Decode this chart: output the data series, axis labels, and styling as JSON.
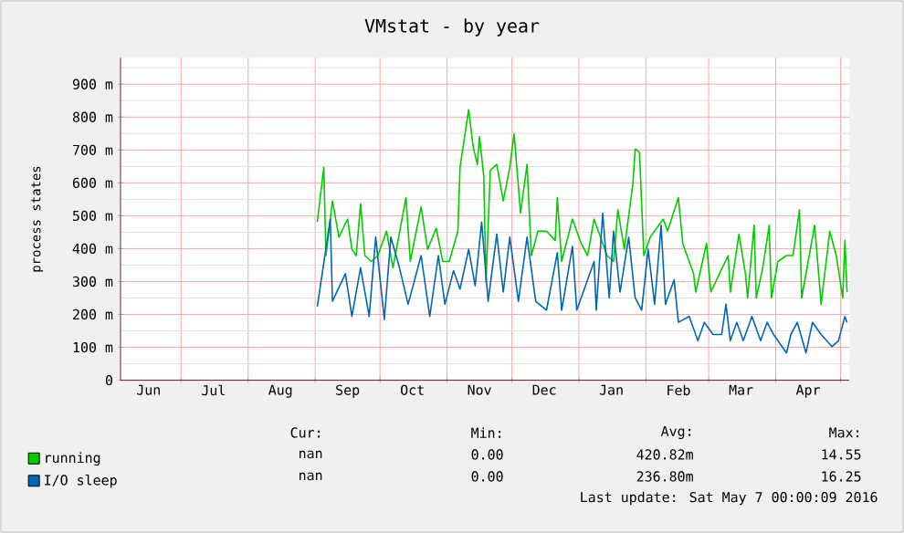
{
  "chart_data": {
    "type": "line",
    "title": "VMstat - by year",
    "ylabel": "process states",
    "xlim": [
      "2015-06-03",
      "2016-05-05"
    ],
    "xticks": [
      {
        "value": "2015-06-16",
        "label": "Jun"
      },
      {
        "value": "2015-07-16",
        "label": "Jul"
      },
      {
        "value": "2015-08-16",
        "label": "Aug"
      },
      {
        "value": "2015-09-16",
        "label": "Sep"
      },
      {
        "value": "2015-10-16",
        "label": "Oct"
      },
      {
        "value": "2015-11-16",
        "label": "Nov"
      },
      {
        "value": "2015-12-16",
        "label": "Dec"
      },
      {
        "value": "2016-01-16",
        "label": "Jan"
      },
      {
        "value": "2016-02-16",
        "label": "Feb"
      },
      {
        "value": "2016-03-16",
        "label": "Mar"
      },
      {
        "value": "2016-04-16",
        "label": "Apr"
      },
      {
        "value": "2015-07-01",
        "label": null
      },
      {
        "value": "2015-08-01",
        "label": null
      },
      {
        "value": "2015-09-01",
        "label": null
      },
      {
        "value": "2015-10-01",
        "label": null
      },
      {
        "value": "2015-11-01",
        "label": null
      },
      {
        "value": "2015-12-01",
        "label": null
      },
      {
        "value": "2016-01-01",
        "label": null
      },
      {
        "value": "2016-02-01",
        "label": null
      },
      {
        "value": "2016-03-01",
        "label": null
      },
      {
        "value": "2016-04-01",
        "label": null
      },
      {
        "value": "2016-05-01",
        "label": null
      }
    ],
    "ylim": [
      0,
      980
    ],
    "yticks": [
      0,
      {
        "value": 100,
        "label": "100 m"
      },
      {
        "value": 200,
        "label": "200 m"
      },
      {
        "value": 300,
        "label": "300 m"
      },
      {
        "value": 400,
        "label": "400 m"
      },
      {
        "value": 500,
        "label": "500 m"
      },
      {
        "value": 600,
        "label": "600 m"
      },
      {
        "value": 700,
        "label": "700 m"
      },
      {
        "value": 800,
        "label": "800 m"
      },
      {
        "value": 900,
        "label": "900 m"
      },
      {
        "value": 50,
        "label": null
      },
      {
        "value": 150,
        "label": null
      },
      {
        "value": 250,
        "label": null
      },
      {
        "value": 350,
        "label": null
      },
      {
        "value": 450,
        "label": null
      },
      {
        "value": 550,
        "label": null
      },
      {
        "value": 650,
        "label": null
      },
      {
        "value": 750,
        "label": null
      },
      {
        "value": 850,
        "label": null
      },
      {
        "value": 950,
        "label": null
      }
    ],
    "grid": true,
    "legend": "bottom",
    "series": [
      {
        "name": "running",
        "color": "#00cc00",
        "x": [
          "2015-09-02",
          "2015-09-05",
          "2015-09-06",
          "2015-09-09",
          "2015-09-12",
          "2015-09-16",
          "2015-09-18",
          "2015-09-20",
          "2015-09-22",
          "2015-09-24",
          "2015-09-27",
          "2015-09-30",
          "2015-10-04",
          "2015-10-07",
          "2015-10-13",
          "2015-10-15",
          "2015-10-20",
          "2015-10-23",
          "2015-10-27",
          "2015-10-30",
          "2015-11-02",
          "2015-11-06",
          "2015-11-07",
          "2015-11-11",
          "2015-11-13",
          "2015-11-15",
          "2015-11-16",
          "2015-11-18",
          "2015-11-19",
          "2015-11-21",
          "2015-11-24",
          "2015-11-27",
          "2015-11-30",
          "2015-12-02",
          "2015-12-05",
          "2015-12-08",
          "2015-12-10",
          "2015-12-13",
          "2015-12-17",
          "2015-12-21",
          "2015-12-22",
          "2015-12-24",
          "2015-12-29",
          "2016-01-02",
          "2016-01-05",
          "2016-01-08",
          "2016-01-14",
          "2016-01-17",
          "2016-01-19",
          "2016-01-22",
          "2016-01-26",
          "2016-01-27",
          "2016-01-29",
          "2016-01-31",
          "2016-02-03",
          "2016-02-09",
          "2016-02-11",
          "2016-02-16",
          "2016-02-18",
          "2016-02-23",
          "2016-02-24",
          "2016-02-29",
          "2016-03-02",
          "2016-03-06",
          "2016-03-10",
          "2016-03-11",
          "2016-03-15",
          "2016-03-18",
          "2016-03-19",
          "2016-03-22",
          "2016-03-23",
          "2016-03-26",
          "2016-03-29",
          "2016-03-30",
          "2016-04-02",
          "2016-04-06",
          "2016-04-09",
          "2016-04-12",
          "2016-04-13",
          "2016-04-16",
          "2016-04-19",
          "2016-04-22",
          "2016-04-26",
          "2016-04-29",
          "2016-05-02",
          "2016-05-03",
          "2016-05-04"
        ],
        "values": [
          481,
          647,
          379,
          545,
          435,
          490,
          398,
          379,
          536,
          379,
          361,
          379,
          453,
          342,
          555,
          361,
          527,
          398,
          462,
          361,
          361,
          453,
          647,
          823,
          712,
          656,
          740,
          619,
          296,
          638,
          656,
          545,
          647,
          749,
          508,
          656,
          379,
          453,
          453,
          425,
          555,
          361,
          490,
          416,
          379,
          490,
          379,
          361,
          518,
          398,
          601,
          703,
          693,
          379,
          435,
          490,
          453,
          555,
          416,
          324,
          268,
          416,
          268,
          324,
          379,
          268,
          444,
          324,
          250,
          471,
          250,
          342,
          471,
          250,
          361,
          379,
          379,
          518,
          250,
          361,
          471,
          231,
          453,
          379,
          250,
          425,
          268
        ]
      },
      {
        "name": "I/O sleep",
        "color": "#0066b3",
        "x": [
          "2015-09-02",
          "2015-09-08",
          "2015-09-09",
          "2015-09-15",
          "2015-09-18",
          "2015-09-22",
          "2015-09-26",
          "2015-09-29",
          "2015-10-03",
          "2015-10-06",
          "2015-10-10",
          "2015-10-14",
          "2015-10-20",
          "2015-10-24",
          "2015-10-28",
          "2015-10-31",
          "2015-11-04",
          "2015-11-07",
          "2015-11-11",
          "2015-11-14",
          "2015-11-17",
          "2015-11-20",
          "2015-11-24",
          "2015-11-27",
          "2015-11-30",
          "2015-12-04",
          "2015-12-08",
          "2015-12-12",
          "2015-12-17",
          "2015-12-22",
          "2015-12-24",
          "2015-12-29",
          "2015-12-31",
          "2016-01-08",
          "2016-01-09",
          "2016-01-12",
          "2016-01-15",
          "2016-01-17",
          "2016-01-20",
          "2016-01-24",
          "2016-01-27",
          "2016-01-30",
          "2016-02-02",
          "2016-02-05",
          "2016-02-08",
          "2016-02-10",
          "2016-02-14",
          "2016-02-16",
          "2016-02-21",
          "2016-02-25",
          "2016-02-28",
          "2016-03-03",
          "2016-03-07",
          "2016-03-09",
          "2016-03-11",
          "2016-03-14",
          "2016-03-17",
          "2016-03-21",
          "2016-03-25",
          "2016-03-28",
          "2016-03-31",
          "2016-04-06",
          "2016-04-08",
          "2016-04-11",
          "2016-04-15",
          "2016-04-18",
          "2016-04-22",
          "2016-04-27",
          "2016-04-30",
          "2016-05-03",
          "2016-05-04"
        ],
        "values": [
          224,
          490,
          240,
          324,
          194,
          342,
          194,
          435,
          185,
          435,
          342,
          231,
          379,
          194,
          379,
          231,
          333,
          277,
          398,
          287,
          481,
          240,
          444,
          268,
          435,
          240,
          435,
          240,
          213,
          388,
          213,
          407,
          213,
          361,
          213,
          508,
          250,
          453,
          268,
          435,
          250,
          213,
          398,
          231,
          471,
          231,
          305,
          176,
          194,
          120,
          176,
          139,
          139,
          231,
          120,
          176,
          120,
          194,
          120,
          176,
          139,
          83,
          139,
          176,
          83,
          176,
          139,
          102,
          120,
          194,
          176
        ]
      }
    ],
    "annotations": [
      "Cur:",
      "Min:",
      "Avg:",
      "Max:",
      "nan",
      "0.00",
      "420.82m",
      "14.55",
      "nan",
      "0.00",
      "236.80m",
      "16.25",
      "Last update: Sat May  7 00:00:09 2016"
    ]
  }
}
